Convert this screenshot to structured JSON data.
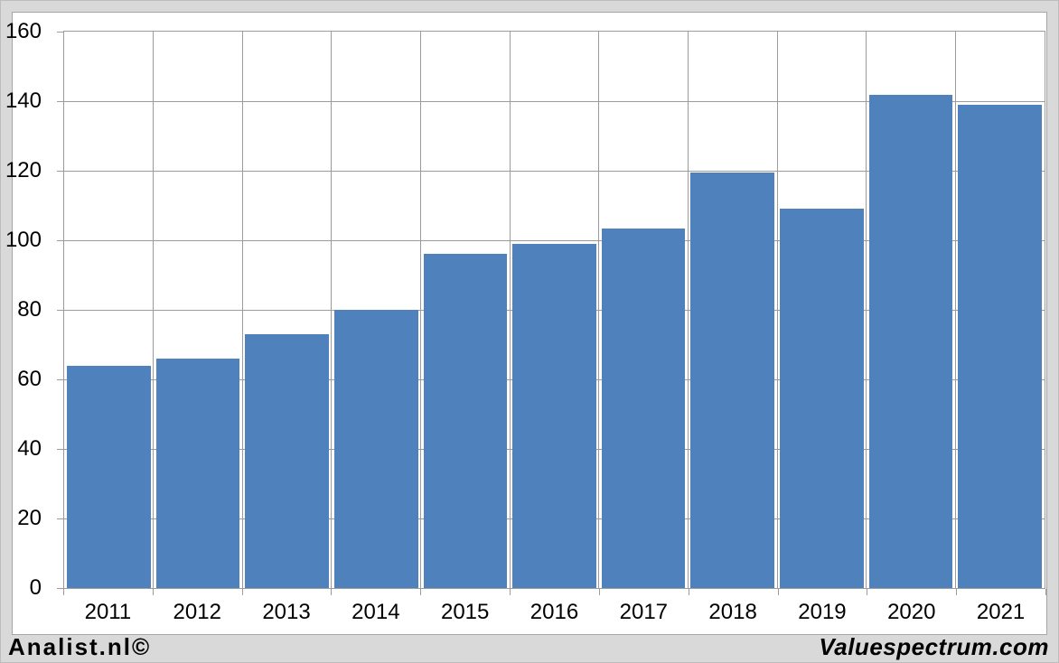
{
  "footer": {
    "left_text": "Analist.nl©",
    "right_text": "Valuespectrum.com"
  },
  "chart_data": {
    "type": "bar",
    "title": "",
    "xlabel": "",
    "ylabel": "",
    "categories": [
      "2011",
      "2012",
      "2013",
      "2014",
      "2015",
      "2016",
      "2017",
      "2018",
      "2019",
      "2020",
      "2021"
    ],
    "values": [
      64,
      66,
      73,
      80,
      96,
      99,
      103.5,
      119.5,
      109,
      141.8,
      139
    ],
    "ylim": [
      0,
      160
    ],
    "ytick_interval": 20,
    "yticks": [
      0,
      20,
      40,
      60,
      80,
      100,
      120,
      140,
      160
    ],
    "grid": true,
    "legend_position": "none",
    "bar_color": "#4f81bd",
    "gridline_color": "#9c9c9c",
    "plot_bg_color": "#ffffff",
    "page_bg_color": "#d9d9d9",
    "chart_border_color": "#a6a6a6",
    "text_color": "#000000"
  }
}
